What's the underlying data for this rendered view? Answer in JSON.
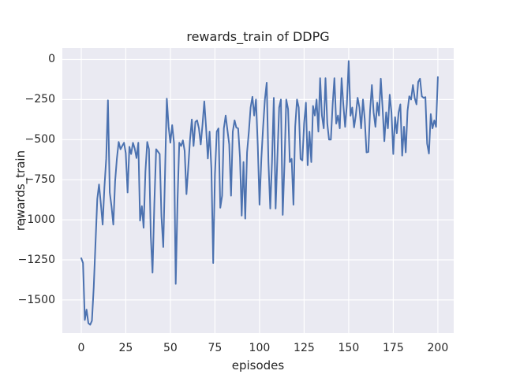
{
  "style": {
    "figure_bg": "#ffffff",
    "axes_bg": "#eaeaf2",
    "grid_color": "#ffffff",
    "text_color": "#262626",
    "line_color": "#4c72b0"
  },
  "chart_data": {
    "type": "line",
    "title": "rewards_train of DDPG",
    "xlabel": "episodes",
    "ylabel": "rewards_train",
    "x_ticks": [
      0,
      25,
      50,
      75,
      100,
      125,
      150,
      175,
      200
    ],
    "y_ticks": [
      0,
      -250,
      -500,
      -750,
      -1000,
      -1250,
      -1500
    ],
    "xlim": [
      -10.6,
      208.9
    ],
    "ylim": [
      -1707,
      71
    ],
    "grid": true,
    "legend": null,
    "series": [
      {
        "name": "rewards_train",
        "x_is_index": true,
        "values": [
          -1240,
          -1270,
          -1625,
          -1560,
          -1645,
          -1655,
          -1630,
          -1420,
          -1150,
          -870,
          -780,
          -900,
          -1030,
          -800,
          -620,
          -255,
          -830,
          -920,
          -1030,
          -760,
          -620,
          -515,
          -560,
          -540,
          -520,
          -585,
          -830,
          -545,
          -590,
          -520,
          -555,
          -615,
          -520,
          -1005,
          -915,
          -1050,
          -700,
          -515,
          -560,
          -1100,
          -1330,
          -900,
          -560,
          -575,
          -590,
          -980,
          -1170,
          -700,
          -245,
          -420,
          -520,
          -410,
          -520,
          -1400,
          -880,
          -520,
          -540,
          -505,
          -570,
          -840,
          -680,
          -500,
          -375,
          -540,
          -390,
          -380,
          -430,
          -530,
          -410,
          -262,
          -420,
          -618,
          -450,
          -680,
          -1270,
          -720,
          -450,
          -430,
          -925,
          -850,
          -430,
          -350,
          -440,
          -530,
          -850,
          -450,
          -380,
          -425,
          -430,
          -610,
          -974,
          -640,
          -993,
          -580,
          -450,
          -300,
          -233,
          -350,
          -250,
          -538,
          -906,
          -620,
          -425,
          -250,
          -145,
          -640,
          -930,
          -640,
          -240,
          -930,
          -620,
          -300,
          -250,
          -970,
          -640,
          -250,
          -310,
          -640,
          -620,
          -906,
          -420,
          -250,
          -300,
          -620,
          -630,
          -400,
          -270,
          -660,
          -450,
          -640,
          -290,
          -350,
          -250,
          -450,
          -117,
          -350,
          -430,
          -117,
          -400,
          -500,
          -500,
          -280,
          -117,
          -400,
          -350,
          -430,
          -117,
          -280,
          -420,
          -280,
          -10,
          -351,
          -300,
          -424,
          -350,
          -239,
          -300,
          -430,
          -250,
          -370,
          -580,
          -577,
          -320,
          -160,
          -330,
          -420,
          -270,
          -350,
          -120,
          -300,
          -510,
          -330,
          -430,
          -220,
          -330,
          -590,
          -360,
          -460,
          -330,
          -280,
          -600,
          -420,
          -580,
          -320,
          -230,
          -250,
          -160,
          -240,
          -280,
          -140,
          -120,
          -230,
          -240,
          -235,
          -525,
          -587,
          -341,
          -430,
          -380,
          -420,
          -110
        ]
      }
    ]
  }
}
